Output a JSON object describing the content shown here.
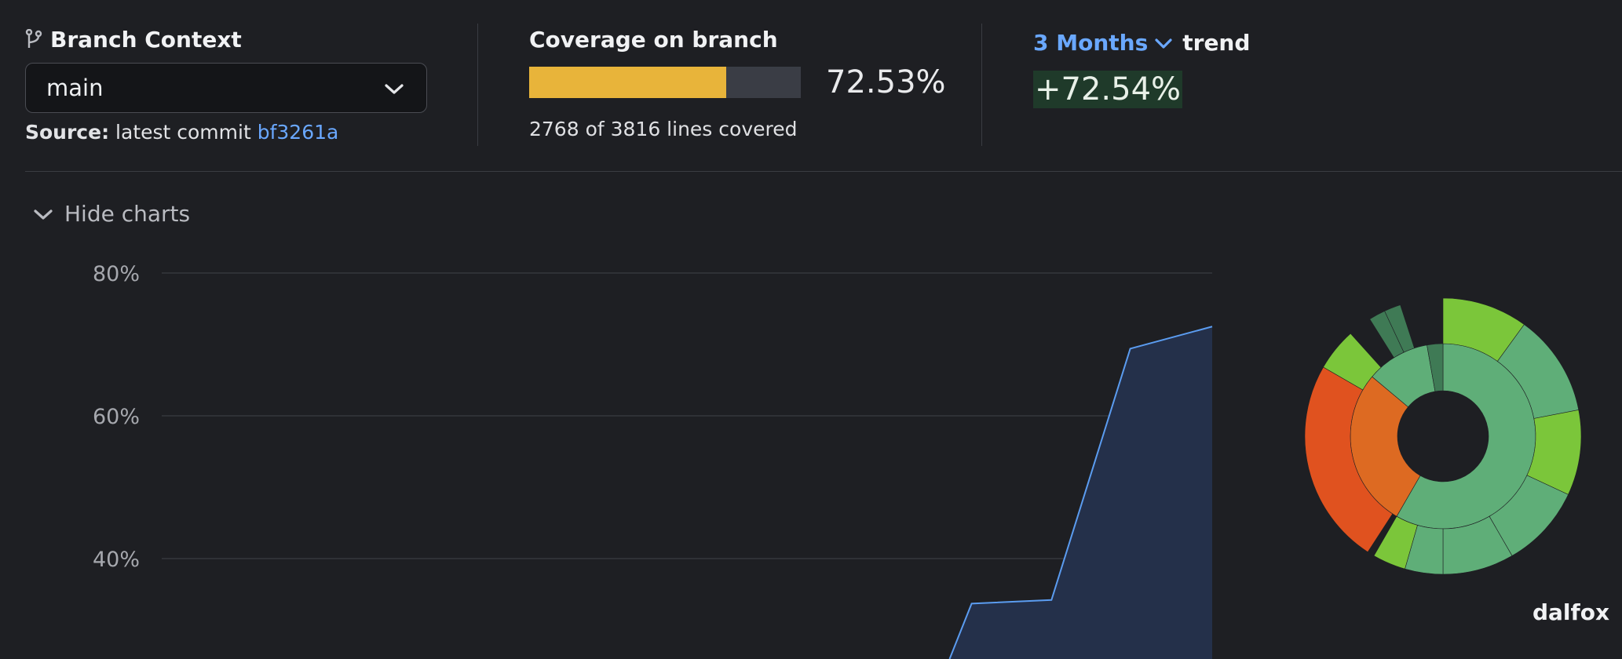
{
  "branch": {
    "title": "Branch Context",
    "selected": "main",
    "source_label": "Source:",
    "source_text": "latest commit",
    "commit": "bf3261a"
  },
  "coverage": {
    "title": "Coverage on branch",
    "percent_text": "72.53%",
    "fraction": 0.7253,
    "lines_text": "2768 of 3816 lines covered",
    "bar_color": "#e8b43a"
  },
  "trend": {
    "period": "3 Months",
    "word": "trend",
    "value": "+72.54%",
    "accent_color": "#6aa8ff"
  },
  "charts_toggle": {
    "label": "Hide charts"
  },
  "chart_data": {
    "type": "area",
    "yticks": [
      "80%",
      "60%",
      "40%"
    ],
    "ytick_values": [
      80,
      60,
      40
    ],
    "ylim": [
      25,
      82
    ],
    "xlim": [
      0,
      1
    ],
    "points": [
      {
        "x": 0.75,
        "y": 25
      },
      {
        "x": 0.771,
        "y": 33.7
      },
      {
        "x": 0.847,
        "y": 34.2
      },
      {
        "x": 0.922,
        "y": 69.4
      },
      {
        "x": 1.0,
        "y": 72.5
      }
    ],
    "line_color": "#5b9cf0",
    "fill_color": "#24304a"
  },
  "sunburst": {
    "repo_name": "dalfox"
  }
}
